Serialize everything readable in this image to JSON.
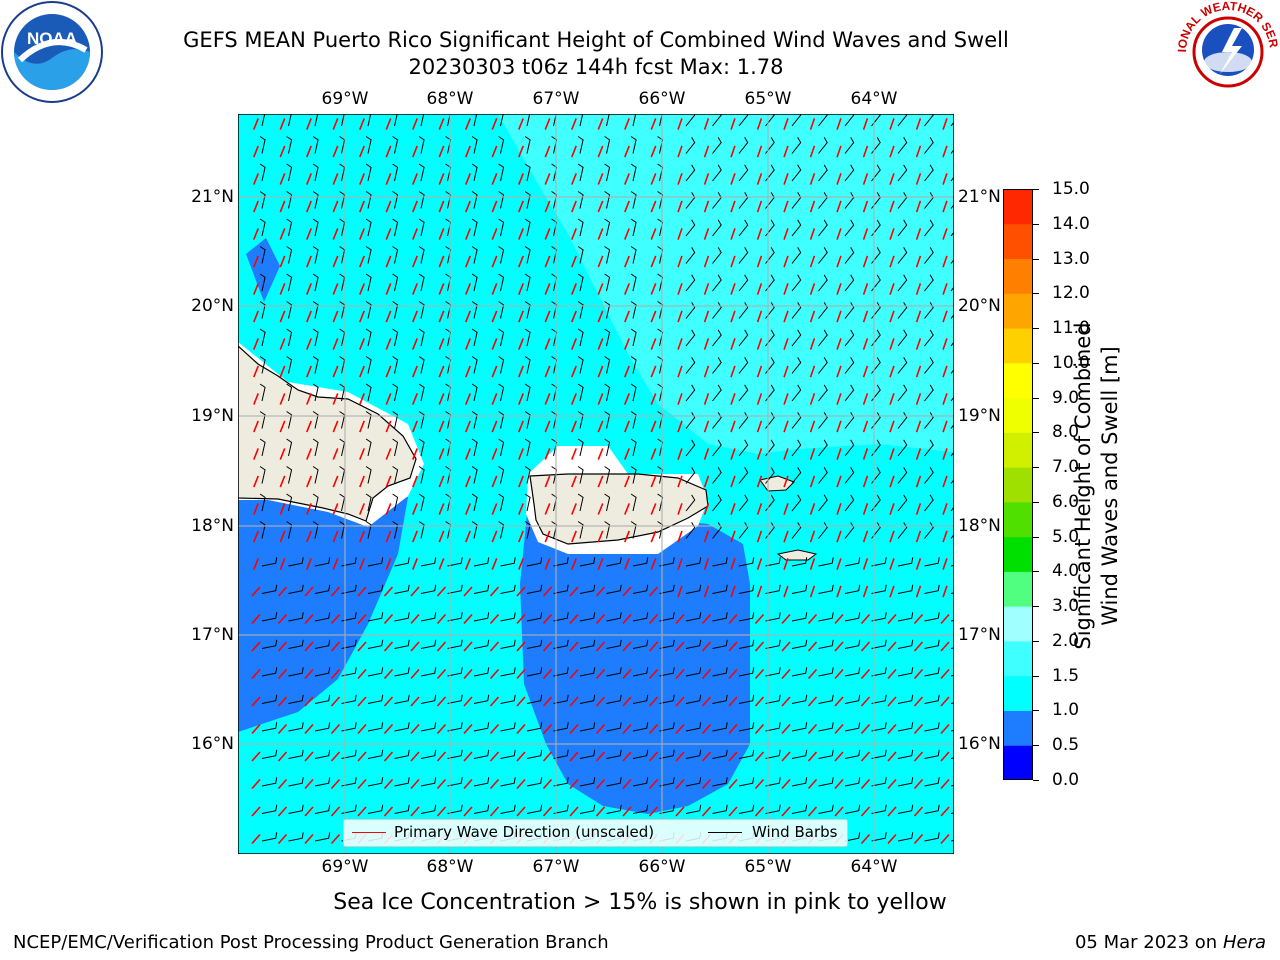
{
  "header": {
    "title_line1": "GEFS MEAN Puerto Rico Significant Height of Combined Wind Waves and Swell",
    "title_line2": "20230303 t06z 144h fcst   Max: 1.78"
  },
  "logos": {
    "left": {
      "icon": "noaa-logo-icon",
      "text": "NOAA"
    },
    "right": {
      "icon": "nws-logo-icon",
      "text": "NATIONAL WEATHER SERVICE"
    }
  },
  "map": {
    "lon_labels": [
      "69°W",
      "68°W",
      "67°W",
      "66°W",
      "65°W",
      "64°W"
    ],
    "lat_labels": [
      "21°N",
      "20°N",
      "19°N",
      "18°N",
      "17°N",
      "16°N"
    ],
    "legend": {
      "wave_direction": "Primary Wave Direction (unscaled)",
      "wind_barbs": "Wind Barbs"
    },
    "colors": {
      "ocean_base": "#00ffff",
      "band_1_1p5": "#00ffff",
      "band_1p5_2": "#40ffff",
      "band_0p5_1": "#1e7cff",
      "land": "#eeecde",
      "no_data": "#ffffff",
      "wave_arrow": "#ff0000",
      "wind_barb": "#000000"
    }
  },
  "colorbar": {
    "label_line1": "Significant Height of Combined",
    "label_line2": "Wind Waves and Swell [m]",
    "ticks": [
      "0.0",
      "0.5",
      "1.0",
      "1.5",
      "2.0",
      "3.0",
      "4.0",
      "5.0",
      "6.0",
      "7.0",
      "8.0",
      "9.0",
      "10.0",
      "11.0",
      "12.0",
      "13.0",
      "14.0",
      "15.0"
    ],
    "colors": [
      "#0000ff",
      "#1e7cff",
      "#00ffff",
      "#40ffff",
      "#a0ffff",
      "#50ff80",
      "#00e000",
      "#50e000",
      "#a0e000",
      "#d0f000",
      "#f0ff00",
      "#ffff00",
      "#ffd000",
      "#ffa500",
      "#ff8000",
      "#ff5000",
      "#ff2800",
      "#ff0000"
    ]
  },
  "subtitle": "Sea Ice Concentration > 15% is shown in pink to yellow",
  "footer": {
    "left": "NCEP/EMC/Verification Post Processing Product Generation Branch",
    "right_date": "05 Mar 2023 on",
    "right_host": "Hera"
  }
}
